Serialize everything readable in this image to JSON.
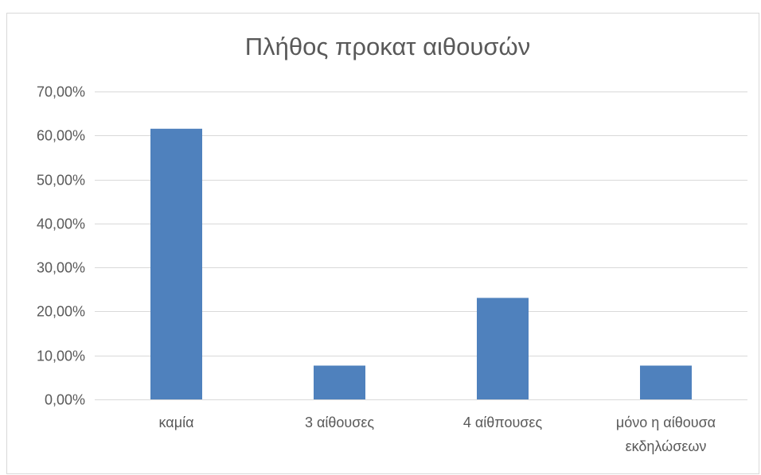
{
  "chart_data": {
    "type": "bar",
    "title": "Πλήθος προκατ αιθουσών",
    "categories": [
      "καμία",
      "3 αίθουσες",
      "4 αίθπουσες",
      "μόνο η αίθουσα εκδηλώσεων"
    ],
    "category_lines": [
      [
        "καμία"
      ],
      [
        "3 αίθουσες"
      ],
      [
        "4 αίθπουσες"
      ],
      [
        "μόνο η αίθουσα",
        "εκδηλώσεων"
      ]
    ],
    "values": [
      61.54,
      7.69,
      23.08,
      7.69
    ],
    "y_ticks": [
      "0,00%",
      "10,00%",
      "20,00%",
      "30,00%",
      "40,00%",
      "50,00%",
      "60,00%",
      "70,00%"
    ],
    "ylim": [
      0,
      70
    ],
    "y_unit": "%",
    "grid": true,
    "legend": "none",
    "bar_color": "#4f81bd",
    "grid_color": "#d9d9d9",
    "text_color": "#595959"
  }
}
